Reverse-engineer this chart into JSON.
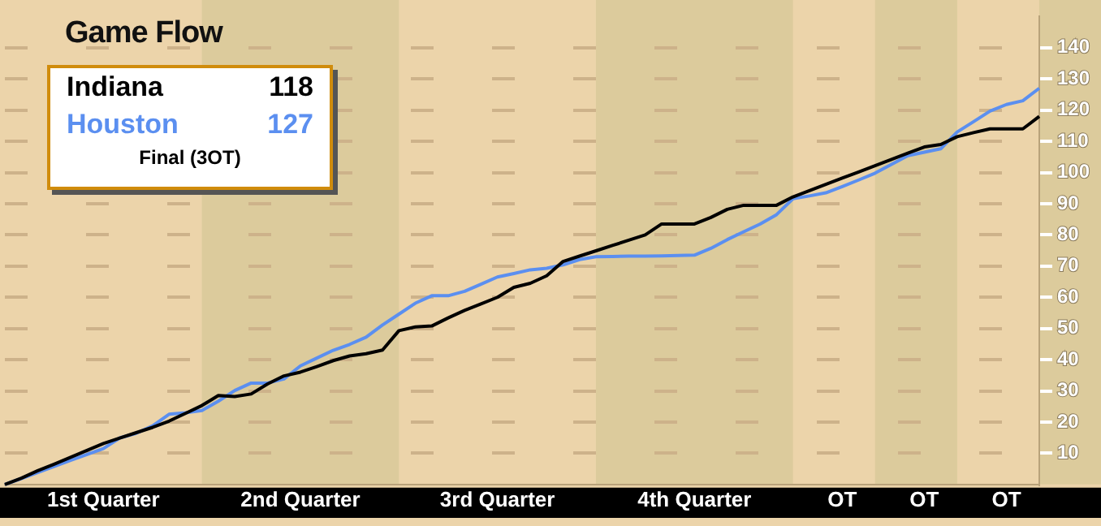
{
  "chart_data": {
    "type": "line",
    "title": "Game Flow",
    "categories": [
      null,
      null,
      null,
      null,
      null,
      null,
      "1st Quarter",
      null,
      null,
      null,
      null,
      null,
      null,
      null,
      null,
      null,
      null,
      null,
      "2nd Quarter",
      null,
      null,
      null,
      null,
      null,
      null,
      null,
      null,
      null,
      null,
      null,
      "3rd Quarter",
      null,
      null,
      null,
      null,
      null,
      null,
      null,
      null,
      null,
      null,
      null,
      "4th Quarter",
      null,
      null,
      null,
      null,
      null,
      null,
      null,
      null,
      "OT",
      null,
      null,
      null,
      null,
      "OT",
      null,
      null,
      null,
      null,
      "OT",
      null,
      null
    ],
    "ylim": [
      0,
      150
    ],
    "yticks": [
      10,
      20,
      30,
      40,
      50,
      60,
      70,
      80,
      90,
      100,
      110,
      120,
      130,
      140
    ],
    "grid": "y",
    "legend": "top left",
    "marker": "none",
    "line_style": "solid",
    "annotations": [
      "118",
      "127",
      "Final (3OT)"
    ],
    "series": [
      {
        "name": "Indiana",
        "color": "#000000",
        "values": [
          0,
          2,
          4.4,
          6.5,
          8.7,
          10.9,
          13.1,
          14.9,
          16.6,
          18.3,
          20.3,
          22.8,
          25.3,
          28.5,
          28.2,
          29,
          32.2,
          34.8,
          36,
          37.8,
          39.7,
          41.2,
          41.9,
          43.1,
          49.3,
          50.5,
          50.8,
          53.4,
          55.8,
          57.9,
          60,
          63.2,
          64.5,
          66.9,
          71.5,
          73.2,
          74.9,
          76.6,
          78.3,
          80,
          83.5,
          83.5,
          83.5,
          85.6,
          88.2,
          89.5,
          89.5,
          89.5,
          92.2,
          94.2,
          96.2,
          98.2,
          100.2,
          102.2,
          104.2,
          106.2,
          108.2,
          109,
          111.5,
          112.8,
          114,
          114,
          114,
          118
        ]
      },
      {
        "name": "Houston",
        "color": "#5b8ff0",
        "values": [
          0,
          1.9,
          3.8,
          5.8,
          7.7,
          9.6,
          11.5,
          14.9,
          16.4,
          18.8,
          22.5,
          23,
          23.7,
          26.7,
          30.1,
          32.5,
          32.5,
          33.8,
          38,
          40.5,
          43,
          44.9,
          47.2,
          51.1,
          54.6,
          58.1,
          60.5,
          60.5,
          61.9,
          64.2,
          66.5,
          67.6,
          68.8,
          69.3,
          70.4,
          72.1,
          73,
          73.1,
          73.2,
          73.2,
          73.3,
          73.4,
          73.5,
          75.7,
          78.5,
          81,
          83.5,
          86.5,
          91.6,
          92.5,
          93.5,
          95.5,
          97.6,
          99.8,
          102.6,
          105.4,
          106.5,
          107.6,
          113,
          116.3,
          119.7,
          121.8,
          123,
          127
        ]
      }
    ]
  }
}
